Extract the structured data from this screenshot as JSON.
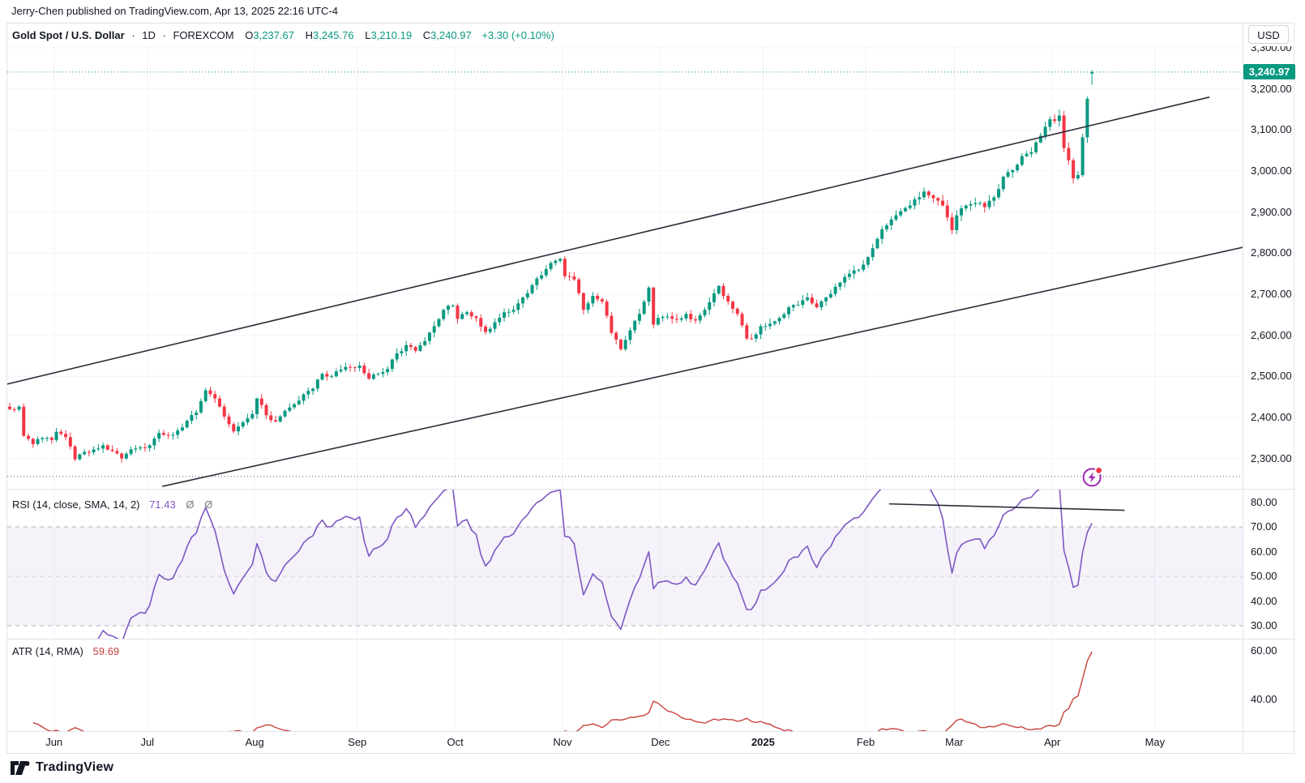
{
  "page": {
    "publisher_line": "Jerry-Chen published on TradingView.com, Apr 13, 2025 22:16 UTC-4"
  },
  "header": {
    "symbol_title": "Gold Spot / U.S. Dollar",
    "separator": "·",
    "interval": "1D",
    "exchange": "FOREXCOM",
    "ohlc": {
      "o_label": "O",
      "o": "3,237.67",
      "h_label": "H",
      "h": "3,245.76",
      "l_label": "L",
      "l": "3,210.19",
      "c_label": "C",
      "c": "3,240.97",
      "change": "+3.30 (+0.10%)"
    },
    "currency_button": "USD"
  },
  "footer": {
    "brand": "TradingView"
  },
  "colors": {
    "up": "#089981",
    "down": "#F23645",
    "rsi_line": "#7E57C2",
    "rsi_band": "#7E57C2",
    "atr_line": "#C8413E",
    "trendline": "#2A2E39",
    "alert_ring": "#9C27B0",
    "alert_dot": "#F23645",
    "grid": "#F2F4F8",
    "dashed": "#787B86",
    "price_label_bg": "#089981",
    "current_price_line": "#089981",
    "alert_line": "#50535E"
  },
  "chart_data": [
    {
      "type": "candlestick",
      "title": "Gold Spot / U.S. Dollar",
      "interval": "1D",
      "exchange": "FOREXCOM",
      "ohlc_last": {
        "open": 3237.67,
        "high": 3245.76,
        "low": 3210.19,
        "close": 3240.97,
        "change": 3.3,
        "change_pct": 0.1
      },
      "y_axis": {
        "ticks": [
          "3,300.00",
          "3,200.00",
          "3,100.00",
          "3,000.00",
          "2,900.00",
          "2,800.00",
          "2,700.00",
          "2,600.00",
          "2,500.00",
          "2,400.00",
          "2,300.00"
        ],
        "tick_values": [
          3300,
          3200,
          3100,
          3000,
          2900,
          2800,
          2700,
          2600,
          2500,
          2400,
          2300
        ],
        "last_price": 3240.97,
        "last_price_label": "3,240.97"
      },
      "x_axis": {
        "months": [
          {
            "label": "Jun",
            "i": 9.5
          },
          {
            "label": "Jul",
            "i": 29.5
          },
          {
            "label": "Aug",
            "i": 52.5
          },
          {
            "label": "Sep",
            "i": 74.5
          },
          {
            "label": "Oct",
            "i": 95.5
          },
          {
            "label": "Nov",
            "i": 118.5
          },
          {
            "label": "Dec",
            "i": 139.5
          },
          {
            "label": "2025",
            "i": 161.5,
            "bold": true
          },
          {
            "label": "Feb",
            "i": 183.5
          },
          {
            "label": "Mar",
            "i": 202.5
          },
          {
            "label": "Apr",
            "i": 223.5
          },
          {
            "label": "May",
            "i": 245.5
          }
        ]
      },
      "candle_count": 233,
      "close_waypoints": [
        [
          0,
          2420
        ],
        [
          2,
          2426
        ],
        [
          3,
          2355
        ],
        [
          5,
          2335
        ],
        [
          7,
          2350
        ],
        [
          9,
          2345
        ],
        [
          10,
          2365
        ],
        [
          12,
          2352
        ],
        [
          14,
          2298
        ],
        [
          16,
          2316
        ],
        [
          18,
          2322
        ],
        [
          20,
          2332
        ],
        [
          22,
          2318
        ],
        [
          24,
          2300
        ],
        [
          26,
          2322
        ],
        [
          28,
          2327
        ],
        [
          30,
          2332
        ],
        [
          32,
          2362
        ],
        [
          34,
          2356
        ],
        [
          36,
          2368
        ],
        [
          38,
          2392
        ],
        [
          40,
          2412
        ],
        [
          42,
          2466
        ],
        [
          44,
          2446
        ],
        [
          46,
          2402
        ],
        [
          48,
          2366
        ],
        [
          50,
          2388
        ],
        [
          52,
          2408
        ],
        [
          53,
          2446
        ],
        [
          55,
          2405
        ],
        [
          57,
          2390
        ],
        [
          59,
          2416
        ],
        [
          61,
          2432
        ],
        [
          63,
          2456
        ],
        [
          65,
          2470
        ],
        [
          67,
          2506
        ],
        [
          69,
          2500
        ],
        [
          71,
          2516
        ],
        [
          73,
          2522
        ],
        [
          75,
          2526
        ],
        [
          77,
          2494
        ],
        [
          79,
          2506
        ],
        [
          81,
          2518
        ],
        [
          83,
          2556
        ],
        [
          85,
          2576
        ],
        [
          87,
          2562
        ],
        [
          89,
          2586
        ],
        [
          91,
          2622
        ],
        [
          93,
          2662
        ],
        [
          95,
          2672
        ],
        [
          96,
          2640
        ],
        [
          98,
          2656
        ],
        [
          100,
          2642
        ],
        [
          102,
          2608
        ],
        [
          104,
          2632
        ],
        [
          106,
          2656
        ],
        [
          108,
          2662
        ],
        [
          110,
          2692
        ],
        [
          112,
          2722
        ],
        [
          114,
          2746
        ],
        [
          116,
          2776
        ],
        [
          118,
          2786
        ],
        [
          119,
          2744
        ],
        [
          121,
          2736
        ],
        [
          123,
          2662
        ],
        [
          125,
          2696
        ],
        [
          127,
          2682
        ],
        [
          129,
          2606
        ],
        [
          131,
          2566
        ],
        [
          133,
          2612
        ],
        [
          135,
          2652
        ],
        [
          137,
          2716
        ],
        [
          138,
          2626
        ],
        [
          139,
          2642
        ],
        [
          141,
          2646
        ],
        [
          143,
          2638
        ],
        [
          145,
          2652
        ],
        [
          147,
          2636
        ],
        [
          149,
          2662
        ],
        [
          151,
          2702
        ],
        [
          152,
          2720
        ],
        [
          154,
          2682
        ],
        [
          156,
          2652
        ],
        [
          158,
          2592
        ],
        [
          160,
          2602
        ],
        [
          161,
          2622
        ],
        [
          163,
          2628
        ],
        [
          165,
          2642
        ],
        [
          167,
          2668
        ],
        [
          169,
          2674
        ],
        [
          171,
          2692
        ],
        [
          173,
          2668
        ],
        [
          175,
          2692
        ],
        [
          177,
          2718
        ],
        [
          179,
          2742
        ],
        [
          181,
          2758
        ],
        [
          183,
          2772
        ],
        [
          185,
          2812
        ],
        [
          187,
          2858
        ],
        [
          189,
          2882
        ],
        [
          191,
          2902
        ],
        [
          193,
          2916
        ],
        [
          195,
          2936
        ],
        [
          196,
          2950
        ],
        [
          198,
          2934
        ],
        [
          200,
          2916
        ],
        [
          202,
          2856
        ],
        [
          203,
          2892
        ],
        [
          205,
          2916
        ],
        [
          207,
          2922
        ],
        [
          209,
          2912
        ],
        [
          211,
          2936
        ],
        [
          213,
          2986
        ],
        [
          215,
          3002
        ],
        [
          217,
          3036
        ],
        [
          219,
          3046
        ],
        [
          221,
          3086
        ],
        [
          223,
          3126
        ],
        [
          224,
          3122
        ],
        [
          225,
          3135
        ],
        [
          226,
          3056
        ],
        [
          227,
          3026
        ],
        [
          228,
          2982
        ],
        [
          229,
          2990
        ],
        [
          230,
          3082
        ],
        [
          231,
          3176
        ],
        [
          232,
          3240.97
        ]
      ],
      "trend_channel": {
        "upper": {
          "i1": -2.1,
          "p1": 2477,
          "i2": 257.2,
          "p2": 3180
        },
        "lower": {
          "i1": 32.7,
          "p1": 2232,
          "i2": 264.3,
          "p2": 2814
        }
      },
      "alert_line": {
        "price": 2256
      }
    },
    {
      "type": "line",
      "name": "RSI",
      "params_label": "RSI (14, close, SMA, 14, 2)",
      "value_label": "71.43",
      "last_value": 71.43,
      "period": 14,
      "hidden_plot_glyphs": [
        "Ø",
        "Ø"
      ],
      "y_axis": {
        "ticks": [
          "80.00",
          "70.00",
          "60.00",
          "50.00",
          "40.00",
          "30.00"
        ],
        "values": [
          80,
          70,
          60,
          50,
          40,
          30
        ]
      },
      "bands": {
        "upper": 70,
        "middle": 50,
        "lower": 30
      },
      "trendline": {
        "i1": 188.5,
        "v1": 79.3,
        "i2": 239,
        "v2": 76.7
      },
      "computed_from": "close_waypoints"
    },
    {
      "type": "line",
      "name": "ATR",
      "params_label": "ATR (14, RMA)",
      "value_label": "59.69",
      "last_value": 59.69,
      "period": 14,
      "y_axis": {
        "ticks": [
          "60.00",
          "40.00"
        ],
        "values": [
          60,
          40
        ]
      },
      "computed_from": "candles true range"
    }
  ]
}
